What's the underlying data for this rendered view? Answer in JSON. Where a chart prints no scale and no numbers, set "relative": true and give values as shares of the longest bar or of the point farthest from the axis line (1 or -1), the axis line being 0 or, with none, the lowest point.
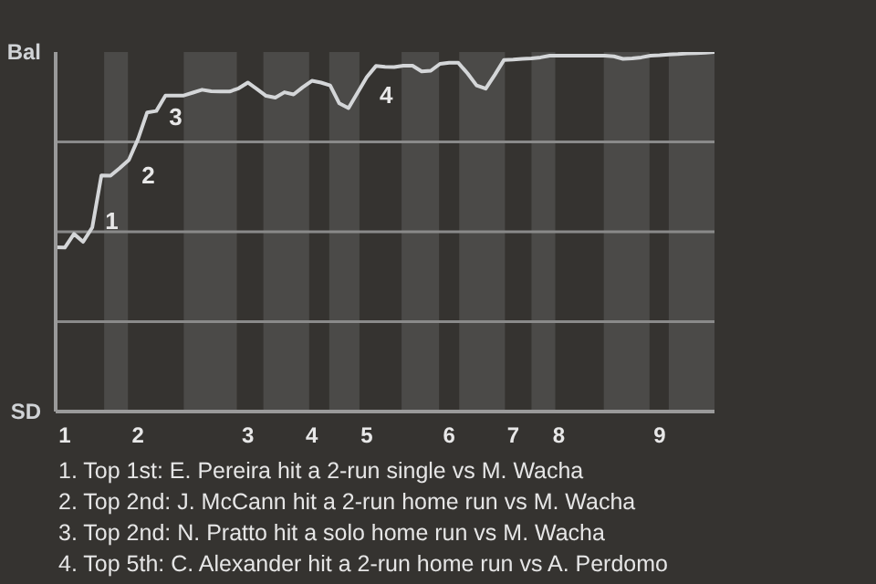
{
  "chart_data": {
    "type": "line",
    "relative": true,
    "categories": [
      null,
      "1",
      null,
      null,
      null,
      null,
      null,
      null,
      null,
      "2",
      null,
      null,
      null,
      null,
      null,
      null,
      null,
      null,
      null,
      null,
      null,
      "3",
      null,
      null,
      null,
      null,
      null,
      null,
      "4",
      null,
      null,
      null,
      null,
      null,
      "5",
      null,
      null,
      null,
      null,
      null,
      null,
      null,
      null,
      "6",
      null,
      null,
      null,
      null,
      null,
      null,
      "7",
      null,
      null,
      null,
      null,
      "8",
      null,
      null,
      null,
      null,
      null,
      null,
      null,
      null,
      null,
      null,
      "9",
      null,
      null,
      null,
      null,
      null,
      null
    ],
    "series": [
      {
        "color": "#d4d6d8",
        "values": [
          0.457,
          0.456,
          0.494,
          0.472,
          0.512,
          0.657,
          0.656,
          0.677,
          0.7,
          0.758,
          0.832,
          0.836,
          0.879,
          0.879,
          0.879,
          0.887,
          0.895,
          0.891,
          0.89,
          0.89,
          0.899,
          0.915,
          0.897,
          0.878,
          0.873,
          0.888,
          0.882,
          0.902,
          0.92,
          0.915,
          0.907,
          0.857,
          0.844,
          0.887,
          0.93,
          0.961,
          0.959,
          0.958,
          0.962,
          0.962,
          0.946,
          0.948,
          0.967,
          0.97,
          0.97,
          0.941,
          0.907,
          0.898,
          0.937,
          0.978,
          0.979,
          0.981,
          0.982,
          0.985,
          0.99,
          0.99,
          0.99,
          0.99,
          0.99,
          0.99,
          0.99,
          0.988,
          0.981,
          0.982,
          0.985,
          0.99,
          0.991,
          0.993,
          0.994,
          0.996,
          0.997,
          0.998,
          1
        ]
      }
    ],
    "marker": "none",
    "line_style": "solid",
    "ref_lines": [
      {
        "axis": "y",
        "value": 0.25,
        "color": "#8a8a8a"
      },
      {
        "axis": "y",
        "value": 0.5,
        "color": "#8a8a8a"
      },
      {
        "axis": "y",
        "value": 0.75,
        "color": "#8a8a8a"
      }
    ],
    "annotations": [
      "1",
      "2",
      "3",
      "4",
      "Bal",
      "SD",
      "1. Top 1st: E. Pereira hit a 2-run single vs M. Wacha",
      "2. Top 2nd: J. McCann hit a 2-run home run vs M. Wacha",
      "3. Top 2nd: N. Pratto hit a solo home run vs M. Wacha",
      "4. Top 5th: C. Alexander hit a 2-run home run vs A. Perdomo"
    ]
  }
}
